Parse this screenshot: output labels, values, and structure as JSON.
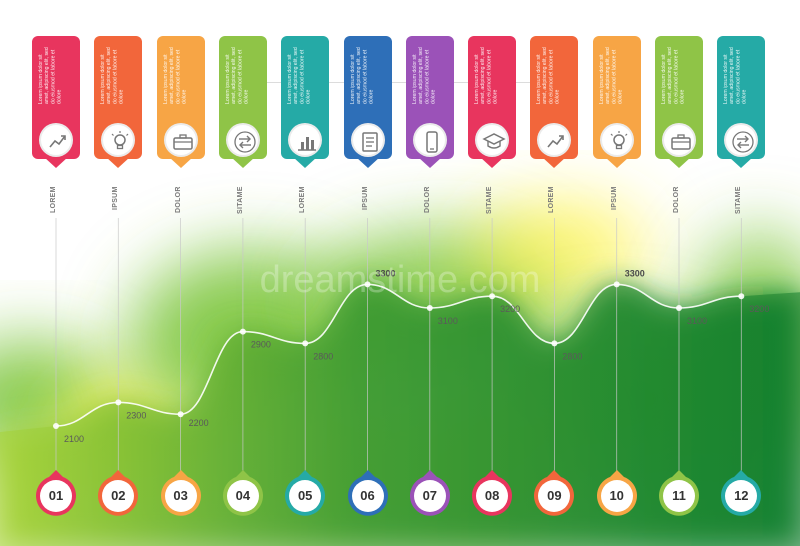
{
  "chart_data": {
    "type": "area",
    "categories": [
      "01",
      "02",
      "03",
      "04",
      "05",
      "06",
      "07",
      "08",
      "09",
      "10",
      "11",
      "12"
    ],
    "column_labels": [
      "LOREM",
      "IPSUM",
      "DOLOR",
      "SITAME",
      "LOREM",
      "IPSUM",
      "DOLOR",
      "SITAME",
      "LOREM",
      "IPSUM",
      "DOLOR",
      "SITAME"
    ],
    "values": [
      2100,
      2300,
      2200,
      2900,
      2800,
      3300,
      3100,
      3200,
      2800,
      3300,
      3100,
      3200
    ],
    "value_labels": [
      "2100",
      "2300",
      "2200",
      "2900",
      "2800",
      "3300",
      "3100",
      "3200",
      "2800",
      "3300",
      "3100",
      "3200"
    ],
    "bold_value_indices": [
      5,
      9
    ],
    "ylim": [
      1000,
      3800
    ],
    "grid": false,
    "title": "",
    "xlabel": "",
    "ylabel": ""
  },
  "cards": [
    {
      "color": "#e8355e",
      "icon": "trend-chart-icon"
    },
    {
      "color": "#f2663b",
      "icon": "lightbulb-icon"
    },
    {
      "color": "#f7a545",
      "icon": "briefcase-icon"
    },
    {
      "color": "#8fc447",
      "icon": "arrows-exchange-icon"
    },
    {
      "color": "#25aaa6",
      "icon": "bar-chart-icon"
    },
    {
      "color": "#2e6fb8",
      "icon": "document-icon"
    },
    {
      "color": "#9b52b8",
      "icon": "mobile-phone-icon"
    },
    {
      "color": "#e8355e",
      "icon": "graduation-cap-icon"
    },
    {
      "color": "#f2663b",
      "icon": "trend-chart-icon"
    },
    {
      "color": "#f7a545",
      "icon": "lightbulb-icon"
    },
    {
      "color": "#8fc447",
      "icon": "briefcase-icon"
    },
    {
      "color": "#25aaa6",
      "icon": "arrows-exchange-icon"
    }
  ],
  "card_text": "Lorem ipsum dolor sit amet, adipiscing elit, sed do eiusmod et labore et dolore",
  "watermark_text": "dreamstime.com",
  "colors": {
    "area_dark": "#0f7d2c",
    "area_light": "#a7d337",
    "glow_yellow": "#fff23a",
    "glow_green": "#7cc53a",
    "glow_teal": "#3fb59a",
    "line": "#ffffff"
  }
}
